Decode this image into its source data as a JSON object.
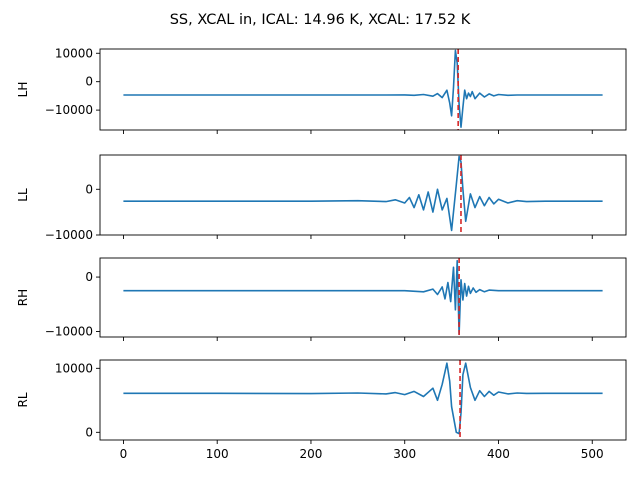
{
  "chart_data": {
    "title": "SS, XCAL in, ICAL: 14.96 K, XCAL: 17.52 K",
    "type": "line",
    "colors": {
      "line": "#1f77b4",
      "reference": "#d62728"
    },
    "xlim": [
      -25,
      536
    ],
    "xticks": [
      0,
      100,
      200,
      300,
      400,
      500
    ],
    "xtick_labels": [
      "0",
      "100",
      "200",
      "300",
      "400",
      "500"
    ],
    "shared_x": true,
    "grid": false,
    "panels": [
      {
        "ylabel": "LH",
        "ylim": [
          -17000,
          11500
        ],
        "yticks": [
          10000,
          0,
          -10000
        ],
        "ytick_labels": [
          "10000",
          "0",
          "−10000"
        ],
        "baseline": -4700,
        "peak_x": 356,
        "reference_x": 357,
        "series": [
          {
            "x": [
              0,
              100,
              200,
              250,
              280,
              300,
              310,
              320,
              330,
              335,
              340,
              345,
              348,
              350,
              352,
              354,
              356,
              358,
              360,
              362,
              364,
              366,
              368,
              370,
              372,
              375,
              380,
              385,
              390,
              395,
              400,
              410,
              420,
              450,
              511
            ],
            "y": [
              -4700,
              -4700,
              -4700,
              -4700,
              -4700,
              -4650,
              -4800,
              -4500,
              -5100,
              -4200,
              -5600,
              -3000,
              -7500,
              -12000,
              -2000,
              11000,
              6500,
              -8000,
              -16000,
              -9000,
              -3000,
              -6000,
              -4000,
              -5200,
              -3500,
              -6000,
              -4000,
              -5400,
              -4300,
              -5000,
              -4500,
              -4800,
              -4700,
              -4700,
              -4700
            ]
          }
        ]
      },
      {
        "ylabel": "LL",
        "ylim": [
          -10000,
          7500
        ],
        "yticks": [
          0,
          -10000
        ],
        "ytick_labels": [
          "0",
          "−10000"
        ],
        "baseline": -2600,
        "peak_x": 358,
        "reference_x": 360,
        "series": [
          {
            "x": [
              0,
              100,
              200,
              250,
              280,
              290,
              300,
              305,
              310,
              315,
              320,
              325,
              330,
              335,
              340,
              345,
              350,
              355,
              358,
              360,
              362,
              365,
              370,
              375,
              380,
              385,
              390,
              395,
              400,
              410,
              420,
              430,
              450,
              511
            ],
            "y": [
              -2600,
              -2600,
              -2600,
              -2500,
              -2700,
              -2300,
              -3000,
              -1800,
              -4000,
              -1200,
              -4500,
              -600,
              -5000,
              0,
              -4500,
              -2000,
              -9000,
              1000,
              7200,
              6000,
              0,
              -7000,
              -1000,
              -4000,
              -1600,
              -3600,
              -1800,
              -3200,
              -2200,
              -3000,
              -2500,
              -2700,
              -2600,
              -2600
            ]
          }
        ]
      },
      {
        "ylabel": "RH",
        "ylim": [
          -11000,
          3500
        ],
        "yticks": [
          0,
          -10000
        ],
        "ytick_labels": [
          "0",
          "−10000"
        ],
        "baseline": -2500,
        "peak_x": 357,
        "reference_x": 358,
        "series": [
          {
            "x": [
              0,
              100,
              200,
              300,
              320,
              330,
              335,
              340,
              343,
              346,
              349,
              352,
              354,
              356,
              358,
              360,
              362,
              364,
              366,
              368,
              370,
              373,
              376,
              380,
              385,
              390,
              400,
              450,
              511
            ],
            "y": [
              -2500,
              -2500,
              -2500,
              -2500,
              -2700,
              -2200,
              -3200,
              -1800,
              -4000,
              -1000,
              -4500,
              1800,
              -6000,
              3000,
              -10500,
              -500,
              -4200,
              -1200,
              -3500,
              -1700,
              -3000,
              -2000,
              -2800,
              -2300,
              -2700,
              -2400,
              -2500,
              -2500,
              -2500
            ]
          }
        ]
      },
      {
        "ylabel": "RL",
        "ylim": [
          -1200,
          11300
        ],
        "yticks": [
          10000,
          0
        ],
        "ytick_labels": [
          "10000",
          "0"
        ],
        "baseline": 6100,
        "peak_x": 358,
        "reference_x": 359,
        "series": [
          {
            "x": [
              0,
              100,
              200,
              250,
              280,
              290,
              300,
              310,
              320,
              330,
              335,
              340,
              345,
              348,
              350,
              355,
              358,
              360,
              362,
              365,
              370,
              375,
              380,
              385,
              390,
              395,
              400,
              410,
              420,
              430,
              450,
              511
            ],
            "y": [
              6100,
              6100,
              6050,
              6150,
              6000,
              6200,
              5900,
              6400,
              5600,
              6900,
              5000,
              7500,
              10800,
              8000,
              4000,
              0,
              -200,
              3000,
              9000,
              10800,
              7000,
              5000,
              6500,
              5600,
              6400,
              5800,
              6300,
              6000,
              6150,
              6080,
              6100,
              6100
            ]
          }
        ]
      }
    ]
  }
}
